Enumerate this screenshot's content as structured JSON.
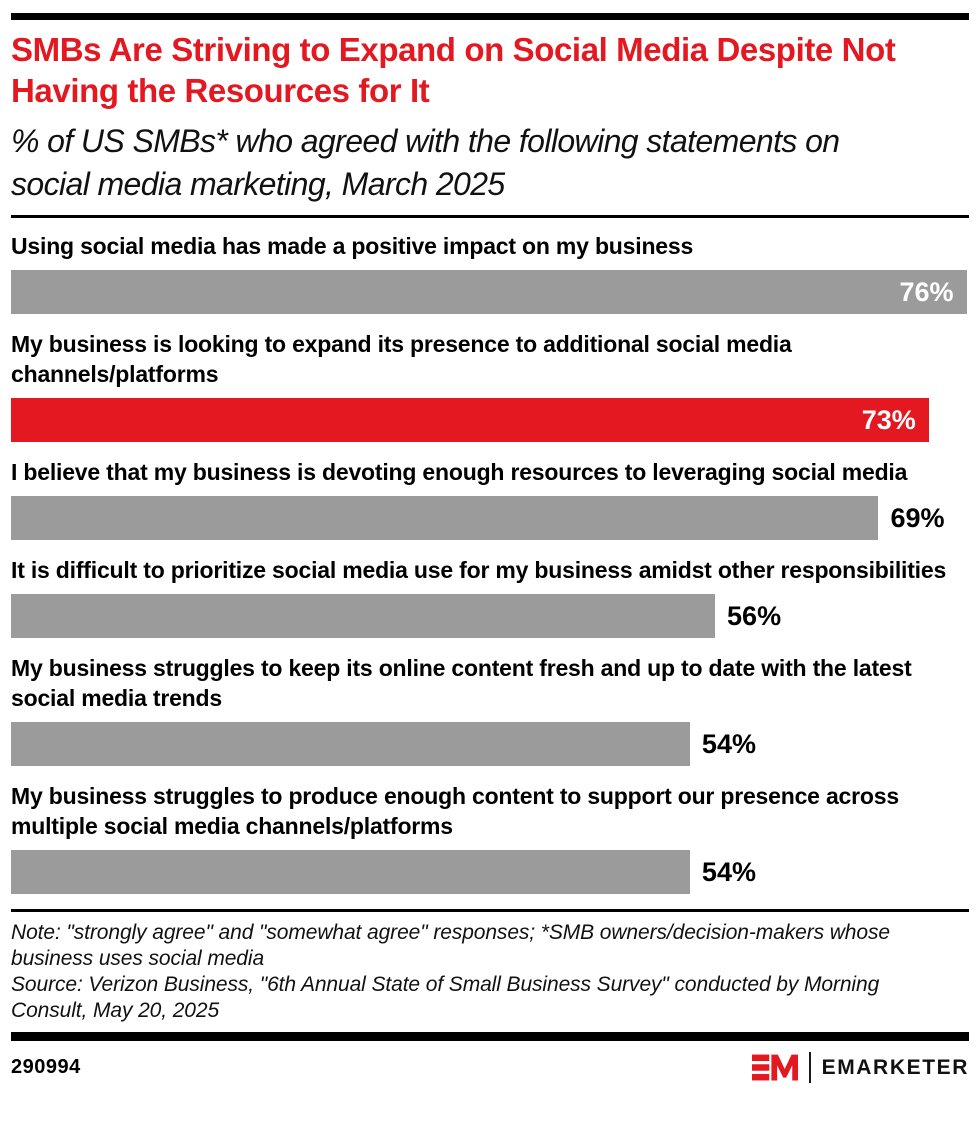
{
  "header": {
    "title": "SMBs Are Striving to Expand on Social Media Despite Not Having the Resources for It",
    "subtitle": "% of US SMBs* who agreed with the following statements on social media marketing, March 2025"
  },
  "chart_data": {
    "type": "bar",
    "orientation": "horizontal",
    "unit": "%",
    "xlim": [
      0,
      76.2
    ],
    "grid": false,
    "legend": "none",
    "categories": [
      "Using social media has made a positive impact on my business",
      "My business is looking to expand its presence to additional social media channels/platforms",
      "I believe that my business is devoting enough resources to leveraging social media",
      "It is difficult to prioritize social media use for my business amidst other responsibilities",
      "My business struggles to keep its online content fresh and up to date with the latest social media trends",
      "My business struggles to produce enough content to support our presence across multiple social media channels/platforms"
    ],
    "values": [
      76,
      73,
      69,
      56,
      54,
      54
    ],
    "value_labels": [
      "76%",
      "73%",
      "69%",
      "56%",
      "54%",
      "54%"
    ],
    "value_label_inside": [
      true,
      true,
      false,
      false,
      false,
      false
    ],
    "bar_colors": [
      "#9b9b9b",
      "#e31820",
      "#9b9b9b",
      "#9b9b9b",
      "#9b9b9b",
      "#9b9b9b"
    ]
  },
  "footnotes": {
    "note": "Note: \"strongly agree\" and \"somewhat agree\" responses; *SMB owners/decision-makers whose business uses social media",
    "source": "Source: Verizon Business, \"6th Annual State of Small Business Survey\" conducted by Morning Consult, May 20, 2025"
  },
  "footer": {
    "chart_id": "290994",
    "brand": "EMARKETER"
  },
  "colors": {
    "accent_red": "#e31820",
    "bar_gray": "#9b9b9b",
    "rule_black": "#000000",
    "value_inside_text": "#ffffff",
    "value_outside_text": "#000000"
  }
}
